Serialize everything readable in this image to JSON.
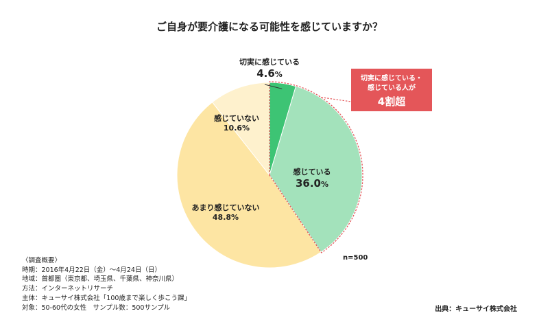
{
  "chart_data": {
    "type": "pie",
    "title": "ご自身が要介護になる可能性を感じていますか？",
    "sample_label": "n=500",
    "start": "top",
    "direction": "clockwise",
    "slices": [
      {
        "label": "切実に感じている",
        "value": 4.6,
        "display": "4.6",
        "unit": "%",
        "color": "#3dc474"
      },
      {
        "label": "感じている",
        "value": 36.0,
        "display": "36.0",
        "unit": "%",
        "color": "#a3e2bb"
      },
      {
        "label": "あまり感じていない",
        "value": 48.8,
        "display": "48.8%",
        "unit": "%",
        "color": "#fde5a3"
      },
      {
        "label": "感じていない",
        "value": 10.6,
        "display": "10.6%",
        "unit": "%",
        "color": "#fef1cd"
      }
    ],
    "highlight": {
      "line1": "切実に感じている・",
      "line2": "感じている人が",
      "line3": "4割超",
      "color": "#e45659"
    }
  },
  "survey": {
    "heading": "〈調査概要〉",
    "lines": [
      "時期：2016年4月22日（金）〜4月24日（日）",
      "地域：首都圏（東京都、埼玉県、千葉県、神奈川県）",
      "方法：インターネットリサーチ",
      "主体：キューサイ株式会社「100歳まで楽しく歩こう課」",
      "対象：50-60代の女性　サンプル数：500サンプル"
    ]
  },
  "source": "出典：キューサイ株式会社"
}
